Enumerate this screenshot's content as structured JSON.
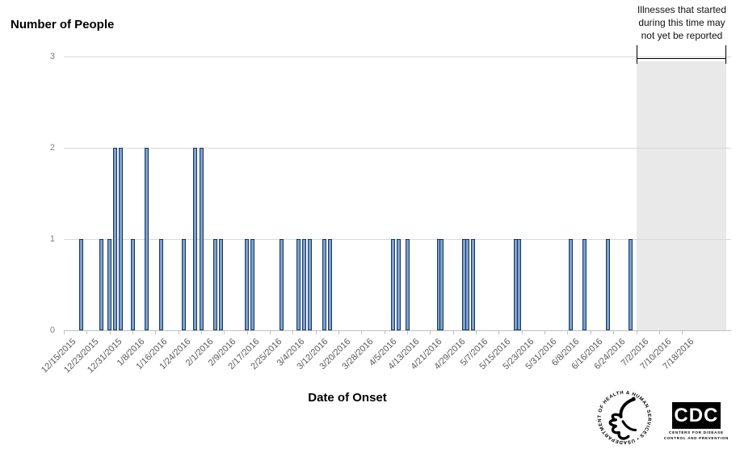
{
  "title": "Number of People",
  "xlabel": "Date of Onset",
  "annotation": {
    "lines": [
      "Illnesses that started",
      "during this time may",
      "not yet be reported"
    ]
  },
  "y_axis": {
    "ticks": [
      0,
      1,
      2,
      3
    ]
  },
  "x_axis": {
    "labels": [
      "12/15/2015",
      "12/23/2015",
      "12/31/2015",
      "1/8/2016",
      "1/16/2016",
      "1/24/2016",
      "2/1/2016",
      "2/9/2016",
      "2/17/2016",
      "2/25/2016",
      "3/4/2016",
      "3/12/2016",
      "3/20/2016",
      "3/28/2016",
      "4/5/2016",
      "4/13/2016",
      "4/21/2016",
      "4/29/2016",
      "5/7/2016",
      "5/15/2016",
      "5/23/2016",
      "5/31/2016",
      "6/8/2016",
      "6/16/2016",
      "6/24/2016",
      "7/2/2016",
      "7/10/2016",
      "7/18/2016"
    ]
  },
  "chart_data": {
    "type": "bar",
    "title": "Number of People",
    "xlabel": "Date of Onset",
    "ylabel": "",
    "ylim": [
      0,
      3
    ],
    "grid": "horizontal",
    "x_start_date": "12/15/2015",
    "tick_interval_days": 8,
    "bars": [
      {
        "date": "12/21/2015",
        "count": 1
      },
      {
        "date": "12/28/2015",
        "count": 1
      },
      {
        "date": "12/31/2015",
        "count": 1
      },
      {
        "date": "1/2/2016",
        "count": 2
      },
      {
        "date": "1/4/2016",
        "count": 2
      },
      {
        "date": "1/8/2016",
        "count": 1
      },
      {
        "date": "1/13/2016",
        "count": 2
      },
      {
        "date": "1/18/2016",
        "count": 1
      },
      {
        "date": "1/26/2016",
        "count": 1
      },
      {
        "date": "1/30/2016",
        "count": 2
      },
      {
        "date": "2/1/2016",
        "count": 2
      },
      {
        "date": "2/6/2016",
        "count": 1
      },
      {
        "date": "2/8/2016",
        "count": 1
      },
      {
        "date": "2/17/2016",
        "count": 1
      },
      {
        "date": "2/19/2016",
        "count": 1
      },
      {
        "date": "2/29/2016",
        "count": 1
      },
      {
        "date": "3/6/2016",
        "count": 1
      },
      {
        "date": "3/8/2016",
        "count": 1
      },
      {
        "date": "3/10/2016",
        "count": 1
      },
      {
        "date": "3/15/2016",
        "count": 1
      },
      {
        "date": "3/17/2016",
        "count": 1
      },
      {
        "date": "4/8/2016",
        "count": 1
      },
      {
        "date": "4/10/2016",
        "count": 1
      },
      {
        "date": "4/13/2016",
        "count": 1
      },
      {
        "date": "4/24/2016",
        "count": 1
      },
      {
        "date": "4/25/2016",
        "count": 1
      },
      {
        "date": "5/3/2016",
        "count": 1
      },
      {
        "date": "5/4/2016",
        "count": 1
      },
      {
        "date": "5/6/2016",
        "count": 1
      },
      {
        "date": "5/21/2016",
        "count": 1
      },
      {
        "date": "5/22/2016",
        "count": 1
      },
      {
        "date": "6/9/2016",
        "count": 1
      },
      {
        "date": "6/14/2016",
        "count": 1
      },
      {
        "date": "6/22/2016",
        "count": 1
      },
      {
        "date": "6/30/2016",
        "count": 1
      }
    ],
    "shaded_region": {
      "start_date": "7/2/2016",
      "label": "Illnesses that started during this time may not yet be reported"
    }
  },
  "logos": {
    "hhs_circle_text": "DEPARTMENT OF HEALTH & HUMAN SERVICES • USA",
    "cdc_acronym": "CDC",
    "cdc_line1": "CENTERS FOR DISEASE",
    "cdc_line2": "CONTROL AND PREVENTION"
  },
  "colors": {
    "bar_fill": "#7ba0cd",
    "bar_border": "#17375e",
    "shade": "#e9e9e9",
    "gridline": "#d9d9d9",
    "axis": "#bfbfbf",
    "x_tick_label": "#595959",
    "y_tick_label": "#7f7f7f"
  }
}
